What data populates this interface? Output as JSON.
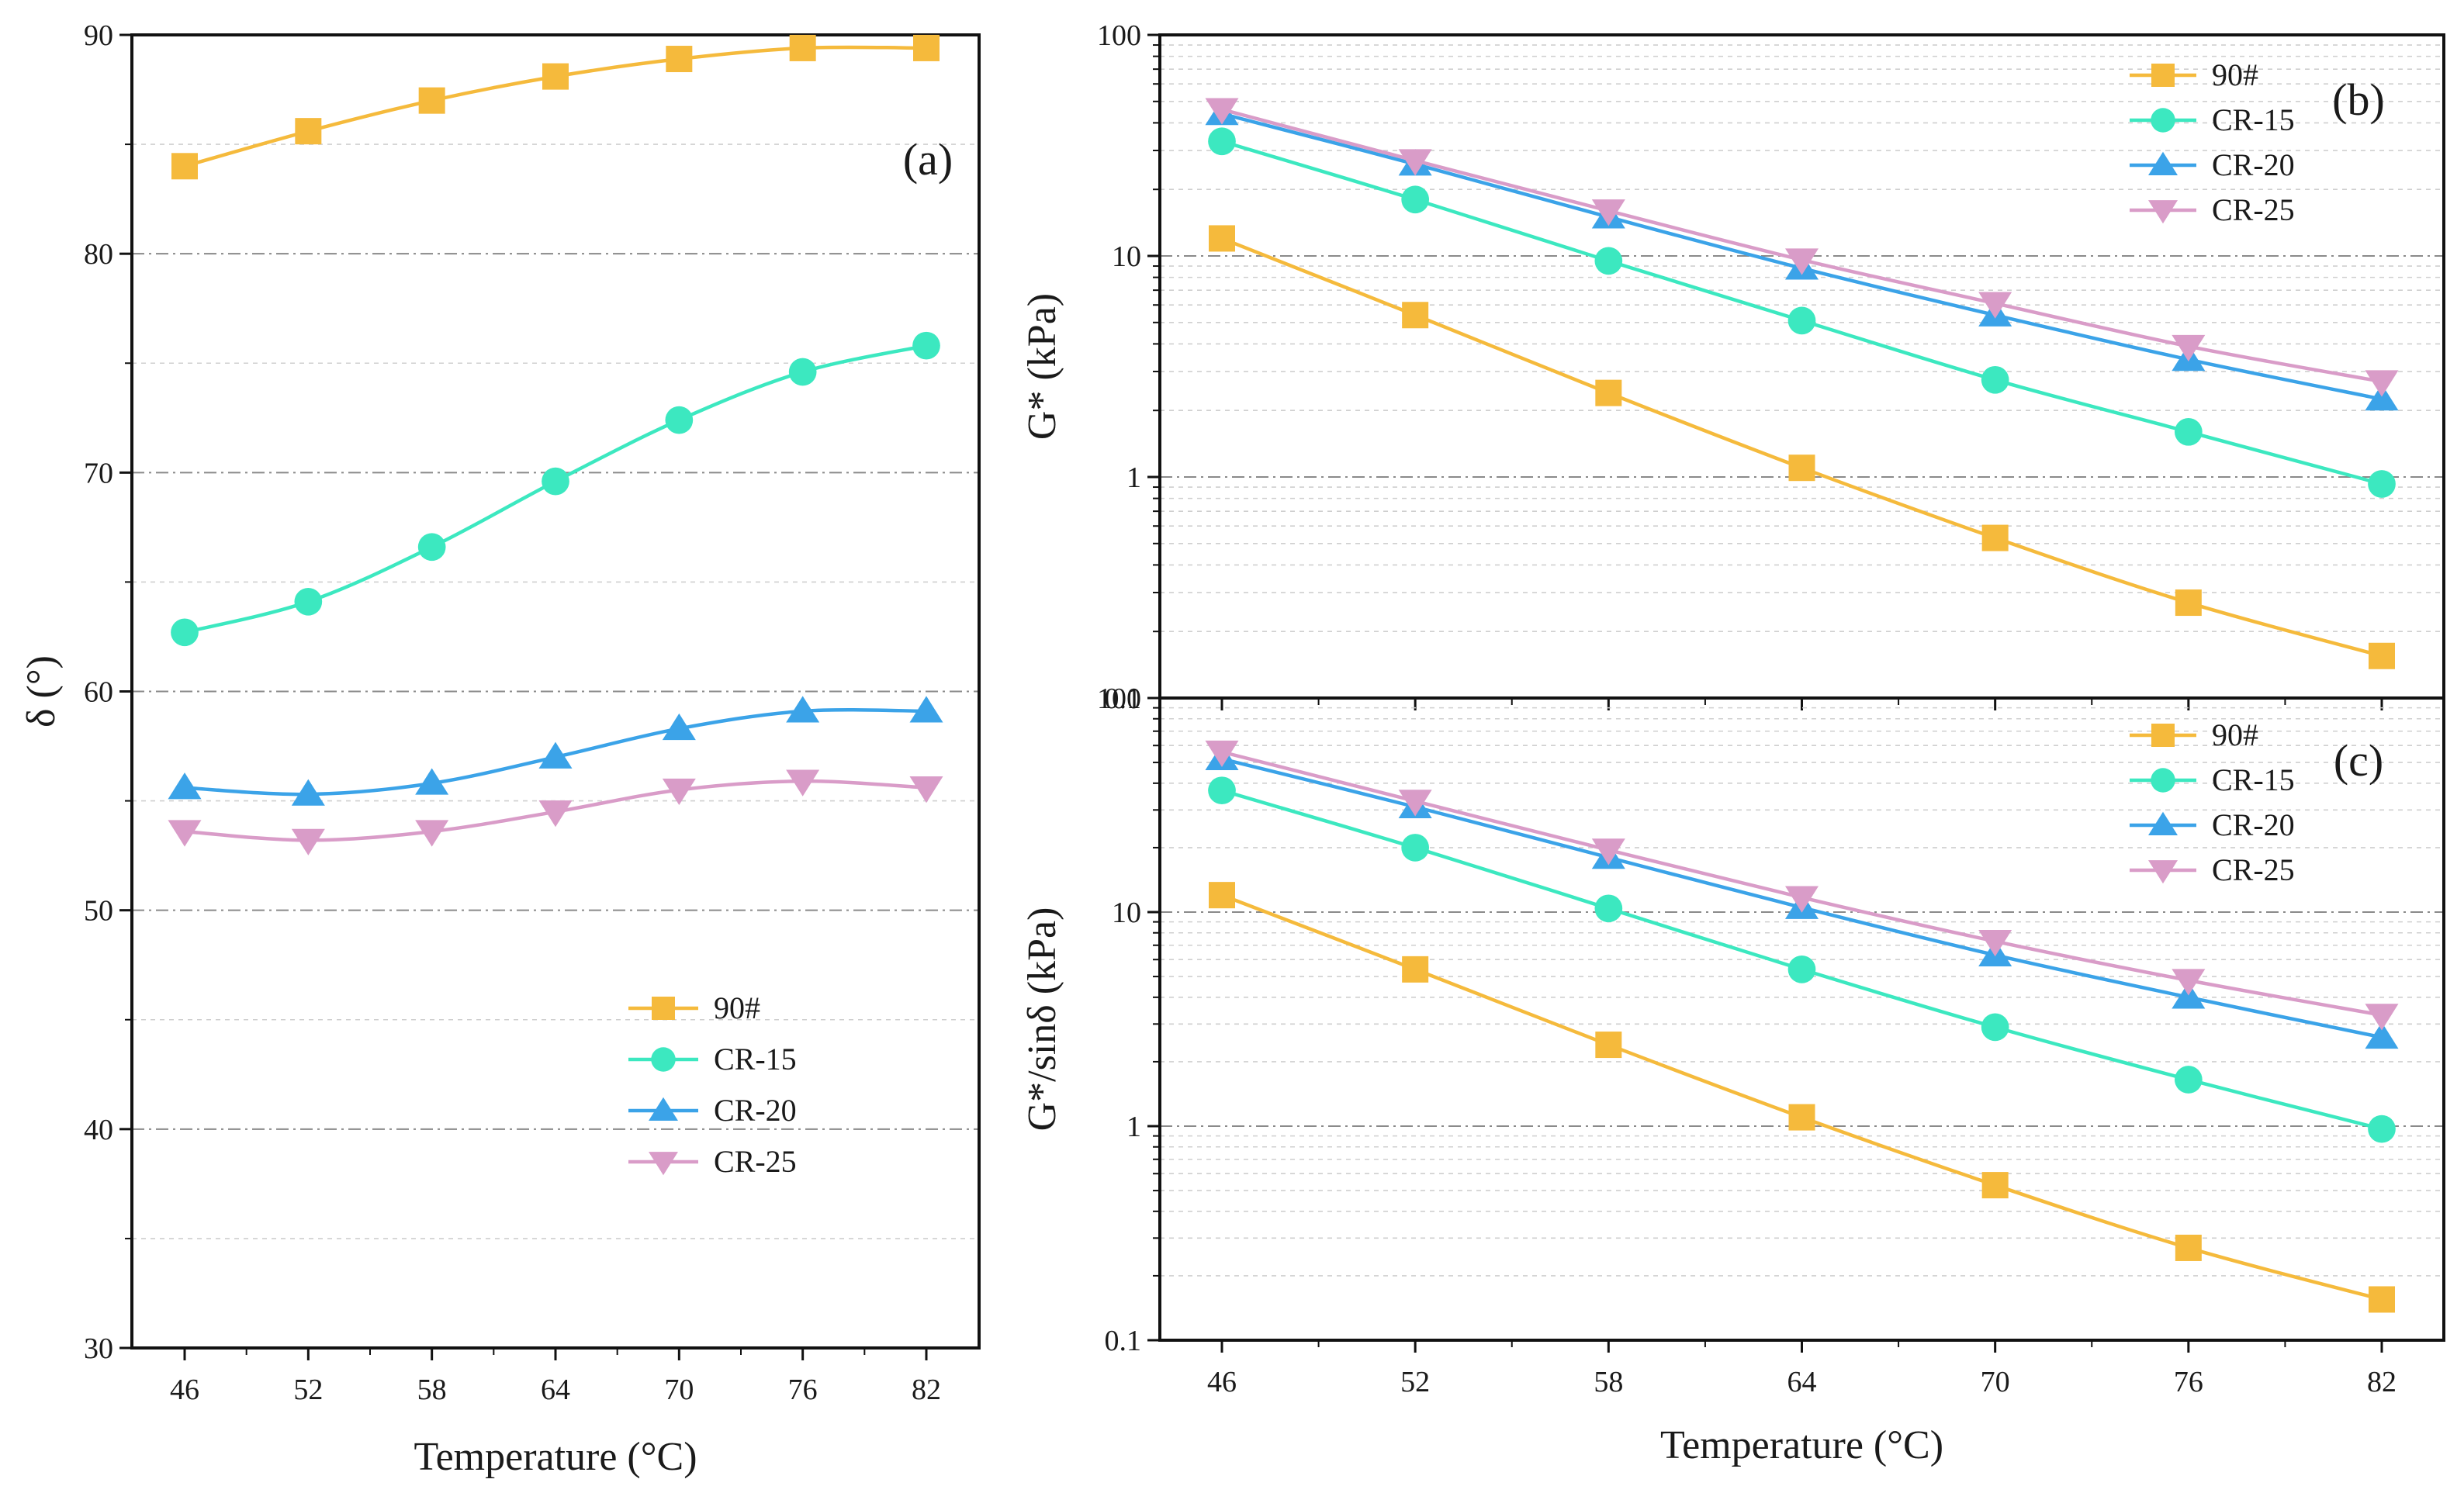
{
  "chart_data": [
    {
      "id": "a",
      "type": "line",
      "scale": "linear",
      "panel_label": "(a)",
      "xlabel": "Temperature (°C)",
      "ylabel": "δ (°)",
      "x": [
        46,
        52,
        58,
        64,
        70,
        76,
        82
      ],
      "x_ticks": [
        "46",
        "52",
        "58",
        "64",
        "70",
        "76",
        "82"
      ],
      "ylim": [
        30,
        90
      ],
      "y_ticks": [
        "30",
        "40",
        "50",
        "60",
        "70",
        "80",
        "90"
      ],
      "legend_position": "lower-right",
      "series": [
        {
          "name": "90#",
          "marker": "square",
          "color": "#F5BA3C",
          "values": [
            84.0,
            85.6,
            87.0,
            88.1,
            88.9,
            89.4,
            89.4
          ]
        },
        {
          "name": "CR-15",
          "marker": "circle",
          "color": "#3CE8C0",
          "values": [
            62.7,
            64.1,
            66.6,
            69.6,
            72.4,
            74.6,
            75.8
          ]
        },
        {
          "name": "CR-20",
          "marker": "triangle-up",
          "color": "#3BA3E8",
          "values": [
            55.6,
            55.3,
            55.8,
            57.0,
            58.3,
            59.1,
            59.1
          ]
        },
        {
          "name": "CR-25",
          "marker": "triangle-down",
          "color": "#D99CC8",
          "values": [
            53.6,
            53.2,
            53.6,
            54.5,
            55.5,
            55.9,
            55.6
          ]
        }
      ]
    },
    {
      "id": "b",
      "type": "line",
      "scale": "log",
      "panel_label": "(b)",
      "xlabel": "",
      "ylabel": "G* (kPa)",
      "x": [
        46,
        52,
        58,
        64,
        70,
        76,
        82
      ],
      "x_ticks": [],
      "ylim": [
        0.1,
        100
      ],
      "y_ticks": [
        "0.1",
        "1",
        "10",
        "100"
      ],
      "legend_position": "top-center",
      "series": [
        {
          "name": "90#",
          "marker": "square",
          "color": "#F5BA3C",
          "values": [
            12.0,
            5.4,
            2.4,
            1.1,
            0.53,
            0.27,
            0.155
          ]
        },
        {
          "name": "CR-15",
          "marker": "circle",
          "color": "#3CE8C0",
          "values": [
            33,
            18,
            9.5,
            5.1,
            2.75,
            1.6,
            0.93
          ]
        },
        {
          "name": "CR-20",
          "marker": "triangle-up",
          "color": "#3BA3E8",
          "values": [
            44,
            26,
            15,
            8.8,
            5.4,
            3.4,
            2.25
          ]
        },
        {
          "name": "CR-25",
          "marker": "triangle-down",
          "color": "#D99CC8",
          "values": [
            46,
            27,
            16,
            9.6,
            6.1,
            3.9,
            2.7
          ]
        }
      ]
    },
    {
      "id": "c",
      "type": "line",
      "scale": "log",
      "panel_label": "(c)",
      "xlabel": "Temperature (°C)",
      "ylabel": "G*/sinδ (kPa)",
      "x": [
        46,
        52,
        58,
        64,
        70,
        76,
        82
      ],
      "x_ticks": [
        "46",
        "52",
        "58",
        "64",
        "70",
        "76",
        "82"
      ],
      "ylim": [
        0.1,
        100
      ],
      "y_ticks": [
        "0.1",
        "1",
        "10",
        "100"
      ],
      "legend_position": "top-center",
      "series": [
        {
          "name": "90#",
          "marker": "square",
          "color": "#F5BA3C",
          "values": [
            12.0,
            5.4,
            2.4,
            1.1,
            0.53,
            0.27,
            0.155
          ]
        },
        {
          "name": "CR-15",
          "marker": "circle",
          "color": "#3CE8C0",
          "values": [
            37,
            20,
            10.4,
            5.4,
            2.9,
            1.65,
            0.97
          ]
        },
        {
          "name": "CR-20",
          "marker": "triangle-up",
          "color": "#3BA3E8",
          "values": [
            52,
            31,
            18,
            10.5,
            6.3,
            4.0,
            2.6
          ]
        },
        {
          "name": "CR-25",
          "marker": "triangle-down",
          "color": "#D99CC8",
          "values": [
            56,
            33,
            19.5,
            11.7,
            7.3,
            4.8,
            3.3
          ]
        }
      ]
    }
  ]
}
